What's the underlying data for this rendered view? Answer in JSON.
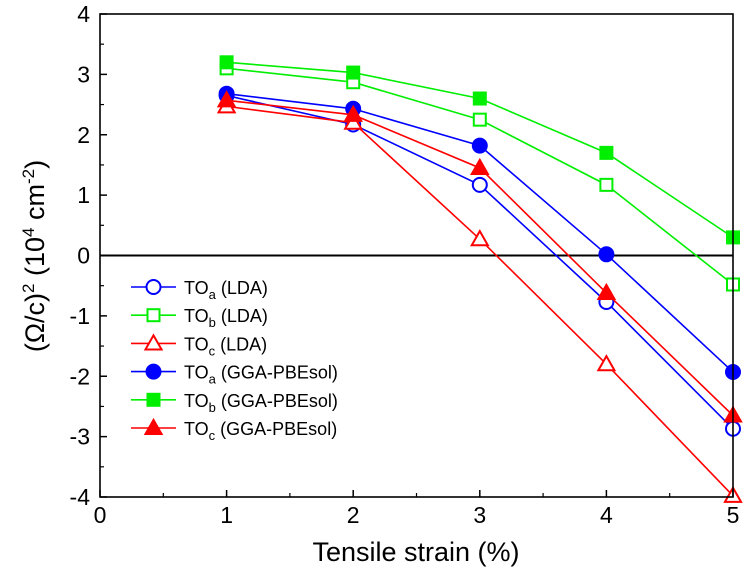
{
  "chart_data": {
    "type": "line",
    "xlabel": "Tensile strain (%)",
    "ylabel_parts": {
      "open": "(",
      "omega": "Ω",
      "slash_c": "/c)",
      "sup2": "2",
      "space_open": " (10",
      "sup4": "4",
      "unit": " cm",
      "sup_neg2": "-2",
      "close": ")"
    },
    "xlim": [
      0,
      5
    ],
    "ylim": [
      -4,
      4
    ],
    "x_ticks": [
      "0",
      "1",
      "2",
      "3",
      "4",
      "5"
    ],
    "y_ticks": [
      "-4",
      "-3",
      "-2",
      "-1",
      "0",
      "1",
      "2",
      "3",
      "4"
    ],
    "zero_line": true,
    "legend_position": "lower-left",
    "x": [
      1,
      2,
      3,
      4,
      5
    ],
    "series": [
      {
        "name_main": "TO",
        "name_sub": "a",
        "name_rest": " (LDA)",
        "color": "#0000ff",
        "marker": "circle",
        "filled": false,
        "values": [
          2.65,
          2.17,
          1.17,
          -0.77,
          -2.87
        ]
      },
      {
        "name_main": "TO",
        "name_sub": "b",
        "name_rest": " (LDA)",
        "color": "#00ee00",
        "marker": "square",
        "filled": false,
        "values": [
          3.1,
          2.87,
          2.25,
          1.17,
          -0.48
        ]
      },
      {
        "name_main": "TO",
        "name_sub": "c",
        "name_rest": " (LDA)",
        "color": "#ff0000",
        "marker": "triangle",
        "filled": false,
        "values": [
          2.47,
          2.2,
          0.27,
          -1.8,
          -3.98
        ]
      },
      {
        "name_main": "TO",
        "name_sub": "a",
        "name_rest": " (GGA-PBEsol)",
        "color": "#0000ff",
        "marker": "circle",
        "filled": true,
        "values": [
          2.68,
          2.43,
          1.82,
          0.02,
          -1.93
        ]
      },
      {
        "name_main": "TO",
        "name_sub": "b",
        "name_rest": " (GGA-PBEsol)",
        "color": "#00ee00",
        "marker": "square",
        "filled": true,
        "values": [
          3.2,
          3.03,
          2.6,
          1.7,
          0.3
        ]
      },
      {
        "name_main": "TO",
        "name_sub": "c",
        "name_rest": " (GGA-PBEsol)",
        "color": "#ff0000",
        "marker": "triangle",
        "filled": true,
        "values": [
          2.57,
          2.33,
          1.45,
          -0.62,
          -2.65
        ]
      }
    ]
  }
}
